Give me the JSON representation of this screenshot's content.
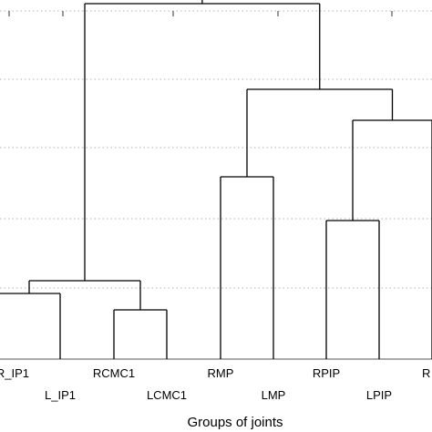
{
  "chart_data": {
    "type": "dendrogram",
    "xlabel": "Groups of joints",
    "ylabel": "",
    "title": "",
    "grid": true,
    "leaves": [
      {
        "key": "rip1",
        "label": "R_IP1",
        "row": "top",
        "partial": "left"
      },
      {
        "key": "lip1",
        "label": "L_IP1",
        "row": "bottom"
      },
      {
        "key": "rcmc1",
        "label": "RCMC1",
        "row": "top"
      },
      {
        "key": "lcmc1",
        "label": "LCMC1",
        "row": "bottom"
      },
      {
        "key": "rmp",
        "label": "RMP",
        "row": "top"
      },
      {
        "key": "lmp",
        "label": "LMP",
        "row": "bottom"
      },
      {
        "key": "rpip",
        "label": "RPIP",
        "row": "top"
      },
      {
        "key": "lpip",
        "label": "LPIP",
        "row": "bottom"
      },
      {
        "key": "r_cut",
        "label": "R",
        "row": "top",
        "partial": "right"
      }
    ],
    "merges": [
      {
        "id": "m1",
        "children": [
          "rip1",
          "lip1"
        ],
        "height": 0.36
      },
      {
        "id": "m2",
        "children": [
          "rcmc1",
          "lcmc1"
        ],
        "height": 0.27
      },
      {
        "id": "m3",
        "children": [
          "m1",
          "m2"
        ],
        "height": 0.43
      },
      {
        "id": "m4",
        "children": [
          "rmp",
          "lmp"
        ],
        "height": 1.0
      },
      {
        "id": "m5",
        "children": [
          "rpip",
          "lpip"
        ],
        "height": 0.76
      },
      {
        "id": "m6",
        "children": [
          "m5",
          "r_cut"
        ],
        "height": 1.31
      },
      {
        "id": "m7",
        "children": [
          "m4",
          "m6"
        ],
        "height": 1.48
      },
      {
        "id": "m8",
        "children": [
          "m3",
          "m7"
        ],
        "height": 1.95
      }
    ]
  }
}
